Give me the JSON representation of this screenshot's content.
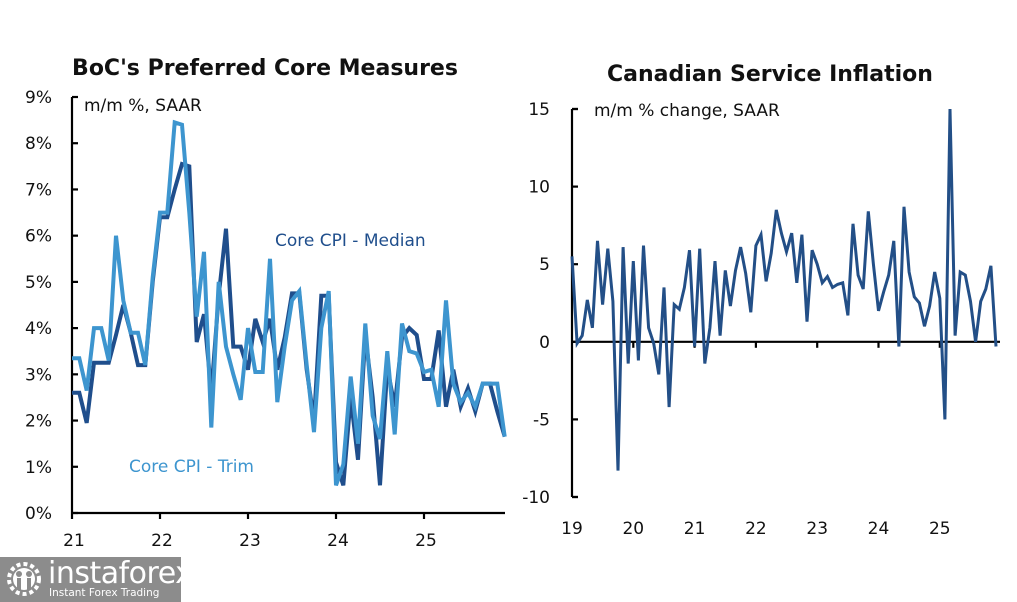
{
  "chart_data": [
    {
      "type": "line",
      "title": "BoC's Preferred Core Measures",
      "annotation": "m/m %, SAAR",
      "xlabel": "",
      "ylabel": "",
      "x_tick_labels": [
        "21",
        "22",
        "23",
        "24",
        "25"
      ],
      "y_tick_labels": [
        "0%",
        "1%",
        "2%",
        "3%",
        "4%",
        "5%",
        "6%",
        "7%",
        "8%",
        "9%"
      ],
      "ylim": [
        0,
        9
      ],
      "x_start": "2021-01",
      "x_frequency": "monthly",
      "grid": false,
      "series": [
        {
          "name": "Core CPI - Median",
          "color": "#1f4e8c",
          "values": [
            2.6,
            2.6,
            1.95,
            3.25,
            3.25,
            3.25,
            3.85,
            4.5,
            3.9,
            3.2,
            3.2,
            5.0,
            6.4,
            6.4,
            7.0,
            7.55,
            7.5,
            3.7,
            4.3,
            2.6,
            4.7,
            6.15,
            3.6,
            3.6,
            3.1,
            4.2,
            3.7,
            4.2,
            3.1,
            3.8,
            4.75,
            4.75,
            3.1,
            2.0,
            4.7,
            4.7,
            1.1,
            0.6,
            2.5,
            1.15,
            3.85,
            2.5,
            0.6,
            3.15,
            2.3,
            3.8,
            4.0,
            3.85,
            2.9,
            2.9,
            3.95,
            2.3,
            3.1,
            2.3,
            2.7,
            2.2,
            2.8,
            2.8,
            2.2,
            1.65
          ]
        },
        {
          "name": "Core CPI - Trim",
          "color": "#3d95cf",
          "values": [
            3.35,
            3.35,
            2.65,
            4.0,
            4.0,
            3.3,
            6.0,
            4.6,
            3.9,
            3.9,
            3.2,
            5.1,
            6.5,
            6.5,
            8.45,
            8.4,
            6.5,
            4.25,
            5.65,
            1.85,
            5.0,
            3.6,
            3.0,
            2.45,
            4.0,
            3.05,
            3.05,
            5.5,
            2.4,
            3.6,
            4.6,
            4.8,
            3.2,
            1.75,
            4.0,
            4.8,
            0.6,
            1.05,
            2.95,
            1.5,
            4.1,
            2.1,
            1.6,
            3.5,
            1.7,
            4.1,
            3.5,
            3.45,
            3.05,
            3.1,
            2.3,
            4.6,
            2.8,
            2.4,
            2.6,
            2.3,
            2.8,
            2.8,
            2.8,
            1.65
          ]
        }
      ],
      "legend": [
        "Core CPI - Median",
        "Core CPI - Trim"
      ]
    },
    {
      "type": "line",
      "title": "Canadian Service Inflation",
      "annotation": "m/m % change, SAAR",
      "xlabel": "",
      "ylabel": "",
      "x_tick_labels": [
        "19",
        "20",
        "21",
        "22",
        "23",
        "24",
        "25"
      ],
      "y_tick_labels": [
        "-10",
        "-5",
        "0",
        "5",
        "10",
        "15"
      ],
      "ylim": [
        -10,
        15
      ],
      "x_start": "2019-01",
      "x_frequency": "monthly",
      "grid": false,
      "series": [
        {
          "name": "Canadian Service Inflation",
          "color": "#234f87",
          "values": [
            5.5,
            -0.1,
            0.4,
            2.7,
            0.9,
            6.5,
            2.4,
            6.0,
            2.6,
            -8.3,
            6.1,
            -1.4,
            5.2,
            -1.2,
            6.2,
            0.9,
            -0.1,
            -2.1,
            3.5,
            -4.2,
            2.4,
            2.1,
            3.5,
            5.9,
            -0.3,
            6.0,
            -1.4,
            0.9,
            5.2,
            0.4,
            4.6,
            2.3,
            4.6,
            6.1,
            4.4,
            1.9,
            6.2,
            6.9,
            3.9,
            5.7,
            8.5,
            7.0,
            5.8,
            7.0,
            3.8,
            6.9,
            1.3,
            5.9,
            5.0,
            3.8,
            4.2,
            3.5,
            3.7,
            3.8,
            1.7,
            7.6,
            4.3,
            3.4,
            8.4,
            5.0,
            2.0,
            3.2,
            4.3,
            6.5,
            -0.3,
            8.7,
            4.5,
            2.9,
            2.5,
            1.0,
            2.3,
            4.5,
            2.8,
            -5.0,
            15.0,
            0.4,
            4.5,
            4.3,
            2.6,
            0.0,
            2.6,
            3.4,
            4.9,
            -0.3
          ]
        }
      ]
    }
  ],
  "watermark": {
    "brand": "instaforex",
    "tagline": "Instant Forex Trading",
    "icon": "gear-people-icon"
  }
}
